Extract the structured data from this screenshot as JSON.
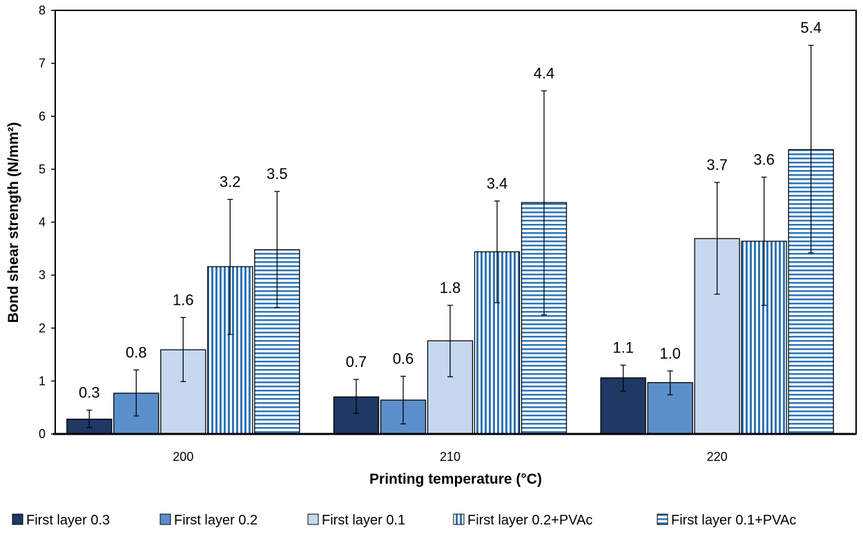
{
  "chart_data": {
    "type": "bar",
    "title": "",
    "xlabel": "Printing temperature (°C)",
    "ylabel": "Bond shear strength (N/mm²)",
    "ylim": [
      0,
      8
    ],
    "yticks": [
      "0",
      "1",
      "2",
      "3",
      "4",
      "5",
      "6",
      "7",
      "8"
    ],
    "grid": false,
    "legend_placement": "bottom",
    "categories": [
      "200",
      "210",
      "220"
    ],
    "series": [
      {
        "name": "First layer 0.3",
        "color": "#1f3864",
        "pattern": "solid",
        "values": [
          0.28,
          0.7,
          1.06
        ],
        "labels": [
          "0.3",
          "0.7",
          "1.1"
        ],
        "err_low": [
          0.12,
          0.39,
          0.81
        ],
        "err_high": [
          0.45,
          1.03,
          1.3
        ]
      },
      {
        "name": "First layer 0.2",
        "color": "#5b8fcc",
        "pattern": "solid",
        "values": [
          0.77,
          0.64,
          0.97
        ],
        "labels": [
          "0.8",
          "0.6",
          "1.0"
        ],
        "err_low": [
          0.34,
          0.19,
          0.74
        ],
        "err_high": [
          1.21,
          1.09,
          1.19
        ]
      },
      {
        "name": "First layer 0.1",
        "color": "#c5d8ef",
        "pattern": "solid",
        "values": [
          1.59,
          1.76,
          3.69
        ],
        "labels": [
          "1.6",
          "1.8",
          "3.7"
        ],
        "err_low": [
          0.99,
          1.08,
          2.64
        ],
        "err_high": [
          2.2,
          2.43,
          4.75
        ]
      },
      {
        "name": "First layer 0.2+PVAc",
        "color": "#2e75b6",
        "pattern": "vertical-stripes",
        "values": [
          3.16,
          3.44,
          3.64
        ],
        "labels": [
          "3.2",
          "3.4",
          "3.6"
        ],
        "err_low": [
          1.88,
          2.48,
          2.43
        ],
        "err_high": [
          4.43,
          4.4,
          4.85
        ]
      },
      {
        "name": "First layer 0.1+PVAc",
        "color": "#2e75b6",
        "pattern": "horizontal-stripes",
        "values": [
          3.48,
          4.37,
          5.37
        ],
        "labels": [
          "3.5",
          "4.4",
          "5.4"
        ],
        "err_low": [
          2.39,
          2.25,
          3.42
        ],
        "err_high": [
          4.58,
          6.48,
          7.34
        ]
      }
    ]
  }
}
